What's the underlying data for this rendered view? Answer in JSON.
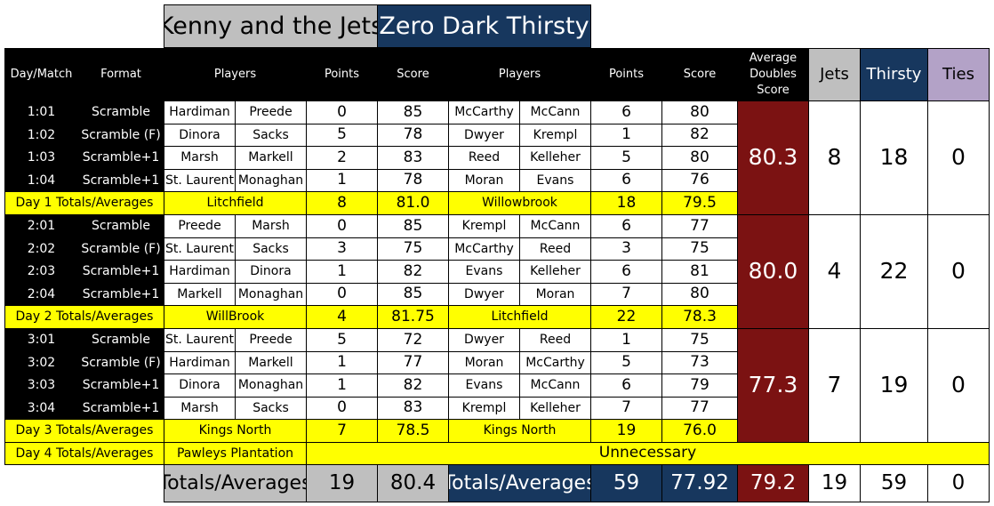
{
  "teams": {
    "jets": "Kenny and the Jets",
    "thirsty": "Zero Dark Thirsty"
  },
  "header": {
    "day_match": "Day/Match",
    "format": "Format",
    "players": "Players",
    "points": "Points",
    "score": "Score",
    "avg_doubles": "Average Doubles Score",
    "jets": "Jets",
    "thirsty": "Thirsty",
    "ties": "Ties"
  },
  "days": [
    {
      "matches": [
        {
          "id": "1:01",
          "format": "Scramble",
          "jp1": "Hardiman",
          "jp2": "Preede",
          "jpts": "0",
          "jscore": "85",
          "tp1": "McCarthy",
          "tp2": "McCann",
          "tpts": "6",
          "tscore": "80"
        },
        {
          "id": "1:02",
          "format": "Scramble (F)",
          "jp1": "Dinora",
          "jp2": "Sacks",
          "jpts": "5",
          "jscore": "78",
          "tp1": "Dwyer",
          "tp2": "Krempl",
          "tpts": "1",
          "tscore": "82"
        },
        {
          "id": "1:03",
          "format": "Scramble+1",
          "jp1": "Marsh",
          "jp2": "Markell",
          "jpts": "2",
          "jscore": "83",
          "tp1": "Reed",
          "tp2": "Kelleher",
          "tpts": "5",
          "tscore": "80"
        },
        {
          "id": "1:04",
          "format": "Scramble+1",
          "jp1": "St. Laurent",
          "jp2": "Monaghan",
          "jpts": "1",
          "jscore": "78",
          "tp1": "Moran",
          "tp2": "Evans",
          "tpts": "6",
          "tscore": "76"
        }
      ],
      "total_label": "Day 1 Totals/Averages",
      "jets_course": "Litchfield",
      "jets_pts": "8",
      "jets_avg": "81.0",
      "thirsty_course": "Willowbrook",
      "thirsty_pts": "18",
      "thirsty_avg": "79.5",
      "avg_doubles": "80.3",
      "jets_total": "8",
      "thirsty_total": "18",
      "ties": "0"
    },
    {
      "matches": [
        {
          "id": "2:01",
          "format": "Scramble",
          "jp1": "Preede",
          "jp2": "Marsh",
          "jpts": "0",
          "jscore": "85",
          "tp1": "Krempl",
          "tp2": "McCann",
          "tpts": "6",
          "tscore": "77"
        },
        {
          "id": "2:02",
          "format": "Scramble (F)",
          "jp1": "St. Laurent",
          "jp2": "Sacks",
          "jpts": "3",
          "jscore": "75",
          "tp1": "McCarthy",
          "tp2": "Reed",
          "tpts": "3",
          "tscore": "75"
        },
        {
          "id": "2:03",
          "format": "Scramble+1",
          "jp1": "Hardiman",
          "jp2": "Dinora",
          "jpts": "1",
          "jscore": "82",
          "tp1": "Evans",
          "tp2": "Kelleher",
          "tpts": "6",
          "tscore": "81"
        },
        {
          "id": "2:04",
          "format": "Scramble+1",
          "jp1": "Markell",
          "jp2": "Monaghan",
          "jpts": "0",
          "jscore": "85",
          "tp1": "Dwyer",
          "tp2": "Moran",
          "tpts": "7",
          "tscore": "80"
        }
      ],
      "total_label": "Day 2 Totals/Averages",
      "jets_course": "WillBrook",
      "jets_pts": "4",
      "jets_avg": "81.75",
      "thirsty_course": "Litchfield",
      "thirsty_pts": "22",
      "thirsty_avg": "78.3",
      "avg_doubles": "80.0",
      "jets_total": "4",
      "thirsty_total": "22",
      "ties": "0"
    },
    {
      "matches": [
        {
          "id": "3:01",
          "format": "Scramble",
          "jp1": "St. Laurent",
          "jp2": "Preede",
          "jpts": "5",
          "jscore": "72",
          "tp1": "Dwyer",
          "tp2": "Reed",
          "tpts": "1",
          "tscore": "75"
        },
        {
          "id": "3:02",
          "format": "Scramble (F)",
          "jp1": "Hardiman",
          "jp2": "Markell",
          "jpts": "1",
          "jscore": "77",
          "tp1": "Moran",
          "tp2": "McCarthy",
          "tpts": "5",
          "tscore": "73"
        },
        {
          "id": "3:03",
          "format": "Scramble+1",
          "jp1": "Dinora",
          "jp2": "Monaghan",
          "jpts": "1",
          "jscore": "82",
          "tp1": "Evans",
          "tp2": "McCann",
          "tpts": "6",
          "tscore": "79"
        },
        {
          "id": "3:04",
          "format": "Scramble+1",
          "jp1": "Marsh",
          "jp2": "Sacks",
          "jpts": "0",
          "jscore": "83",
          "tp1": "Krempl",
          "tp2": "Kelleher",
          "tpts": "7",
          "tscore": "77"
        }
      ],
      "total_label": "Day 3 Totals/Averages",
      "jets_course": "Kings North",
      "jets_pts": "7",
      "jets_avg": "78.5",
      "thirsty_course": "Kings North",
      "thirsty_pts": "19",
      "thirsty_avg": "76.0",
      "avg_doubles": "77.3",
      "jets_total": "7",
      "thirsty_total": "19",
      "ties": "0"
    }
  ],
  "day4": {
    "label": "Day 4 Totals/Averages",
    "course": "Pawleys Plantation",
    "note": "Unnecessary"
  },
  "totals": {
    "jets_label": "Totals/Averages",
    "jets_pts": "19",
    "jets_avg": "80.4",
    "thirsty_label": "Totals/Averages",
    "thirsty_pts": "59",
    "thirsty_avg": "77.92",
    "avg_doubles": "79.2",
    "jets_total": "19",
    "thirsty_total": "59",
    "ties": "0"
  },
  "colors": {
    "black": "#000000",
    "yellow": "#ffff00",
    "gray": "#bfbfbf",
    "navy": "#17375e",
    "maroon": "#7b1212",
    "lavender": "#b3a2c7"
  }
}
